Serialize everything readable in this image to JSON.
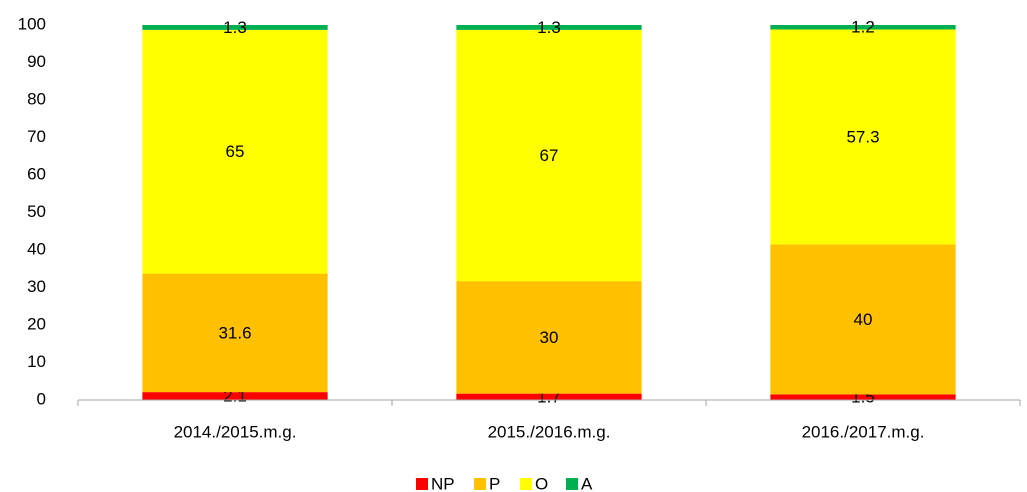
{
  "chart_data": {
    "type": "stacked_bar",
    "categories": [
      "2014./2015.m.g.",
      "2015./2016.m.g.",
      "2016./2017.m.g."
    ],
    "series": [
      {
        "name": "NP",
        "color": "#ff0000",
        "values": [
          2.1,
          1.7,
          1.5
        ]
      },
      {
        "name": "P",
        "color": "#ffc000",
        "values": [
          31.6,
          30,
          40
        ]
      },
      {
        "name": "O",
        "color": "#ffff00",
        "values": [
          65,
          67,
          57.3
        ]
      },
      {
        "name": "A",
        "color": "#00b050",
        "values": [
          1.3,
          1.3,
          1.2
        ]
      }
    ],
    "ylim": [
      0,
      100
    ],
    "yticks": [
      0,
      10,
      20,
      30,
      40,
      50,
      60,
      70,
      80,
      90,
      100
    ],
    "grid": false,
    "legend": "bottom"
  }
}
